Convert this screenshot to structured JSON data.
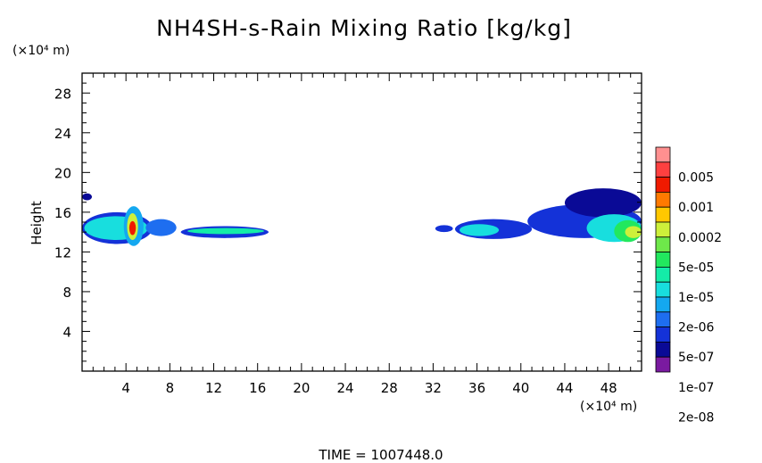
{
  "chart_data": {
    "type": "heatmap",
    "title": "NH4SH-s-Rain Mixing Ratio [kg/kg]",
    "xlabel": "",
    "ylabel": "Height",
    "x_unit": "(×10⁴ m)",
    "y_unit": "(×10⁴ m)",
    "xlim": [
      0,
      51
    ],
    "ylim": [
      0,
      30
    ],
    "xticks": [
      4,
      8,
      12,
      16,
      20,
      24,
      28,
      32,
      36,
      40,
      44,
      48
    ],
    "yticks": [
      4,
      8,
      12,
      16,
      20,
      24,
      28
    ],
    "grid": false,
    "colorbar": {
      "labels": [
        "0.005",
        "0.001",
        "0.0002",
        "5e-05",
        "1e-05",
        "2e-06",
        "5e-07",
        "1e-07",
        "2e-08"
      ],
      "colors": [
        "#ff9090",
        "#ff4040",
        "#f01a00",
        "#ff7a00",
        "#ffc800",
        "#cdf03a",
        "#6ee84a",
        "#22e85e",
        "#14eca8",
        "#18dede",
        "#14a8f0",
        "#1e6ef0",
        "#1432d8",
        "#0a0a96",
        "#7a1aa0"
      ]
    },
    "blobs": [
      {
        "x": [
          0,
          0.9
        ],
        "y": [
          17.2,
          17.9
        ],
        "level": 1
      },
      {
        "x": [
          0,
          6.4
        ],
        "y": [
          12.8,
          16.0
        ],
        "level": 2
      },
      {
        "x": [
          0.2,
          6.0
        ],
        "y": [
          13.2,
          15.6
        ],
        "level": 5
      },
      {
        "x": [
          3.8,
          5.6
        ],
        "y": [
          12.6,
          16.6
        ],
        "level": 4
      },
      {
        "x": [
          4.1,
          5.1
        ],
        "y": [
          13.2,
          15.9
        ],
        "level": 9
      },
      {
        "x": [
          4.3,
          4.9
        ],
        "y": [
          13.7,
          15.1
        ],
        "level": 12
      },
      {
        "x": [
          5.8,
          8.6
        ],
        "y": [
          13.6,
          15.3
        ],
        "level": 3
      },
      {
        "x": [
          9.0,
          17.0
        ],
        "y": [
          13.4,
          14.6
        ],
        "level": 2
      },
      {
        "x": [
          9.6,
          16.6
        ],
        "y": [
          13.8,
          14.4
        ],
        "level": 6
      },
      {
        "x": [
          32.2,
          33.8
        ],
        "y": [
          14.0,
          14.7
        ],
        "level": 2
      },
      {
        "x": [
          34.0,
          41.0
        ],
        "y": [
          13.3,
          15.3
        ],
        "level": 2
      },
      {
        "x": [
          34.4,
          38.0
        ],
        "y": [
          13.6,
          14.8
        ],
        "level": 5
      },
      {
        "x": [
          40.6,
          51.0
        ],
        "y": [
          13.4,
          16.8
        ],
        "level": 2
      },
      {
        "x": [
          44.0,
          51.0
        ],
        "y": [
          15.5,
          18.4
        ],
        "level": 1
      },
      {
        "x": [
          46.0,
          51.0
        ],
        "y": [
          13.0,
          15.8
        ],
        "level": 5
      },
      {
        "x": [
          48.5,
          51.0
        ],
        "y": [
          13.0,
          15.2
        ],
        "level": 7
      },
      {
        "x": [
          49.5,
          51.0
        ],
        "y": [
          13.4,
          14.6
        ],
        "level": 9
      }
    ]
  },
  "footer": {
    "time_label": "TIME  =  1007448.0"
  }
}
